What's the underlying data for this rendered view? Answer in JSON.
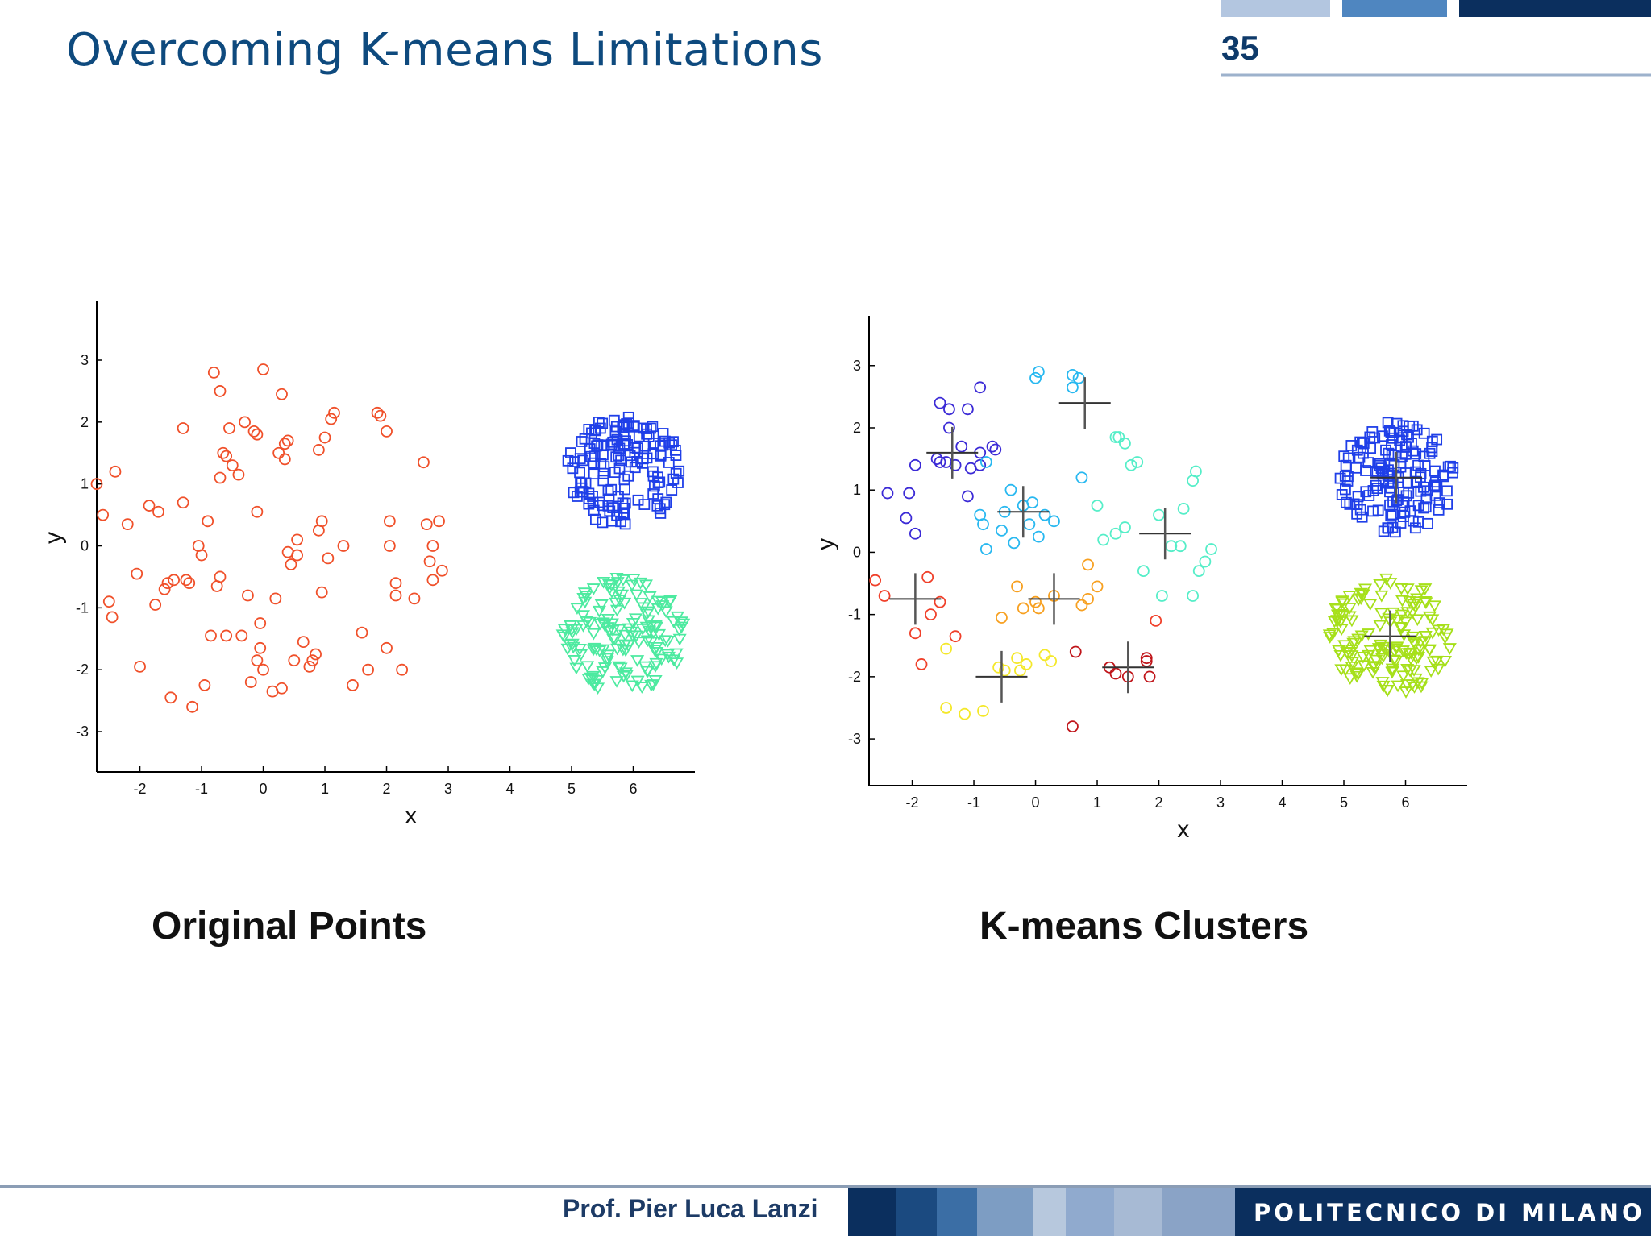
{
  "slide": {
    "title": "Overcoming K-means Limitations",
    "number": "35",
    "captions": [
      "Original Points",
      "K-means Clusters"
    ]
  },
  "footer": {
    "author": "Prof. Pier Luca Lanzi",
    "organization": "POLITECNICO DI MILANO"
  },
  "colors": {
    "title": "#0e4a7e",
    "footer_dark": "#0b2f5e",
    "red_points": "#f0502a",
    "blue_points": "#1f3fe8",
    "green_points": "#4deaa0",
    "lime_points": "#a6e01a",
    "centroid": "#333333"
  },
  "chart_data": [
    {
      "type": "scatter",
      "title": "",
      "caption": "Original Points",
      "xlabel": "x",
      "ylabel": "y",
      "xlim": [
        -2.7,
        7.0
      ],
      "ylim": [
        -3.65,
        3.95
      ],
      "xticks": [
        -2,
        -1,
        0,
        1,
        2,
        3,
        4,
        5,
        6
      ],
      "yticks": [
        -3,
        -2,
        -1,
        0,
        1,
        2,
        3
      ],
      "series": [
        {
          "marker": "circle",
          "color": "#f0502a",
          "points": [
            [
              -2.7,
              1.0
            ],
            [
              -2.6,
              0.5
            ],
            [
              -2.5,
              -0.9
            ],
            [
              -2.45,
              -1.15
            ],
            [
              -2.4,
              1.2
            ],
            [
              -2.2,
              0.35
            ],
            [
              -2.05,
              -0.45
            ],
            [
              -2.0,
              -1.95
            ],
            [
              -1.85,
              0.65
            ],
            [
              -1.75,
              -0.95
            ],
            [
              -1.7,
              0.55
            ],
            [
              -1.6,
              -0.7
            ],
            [
              -1.55,
              -0.6
            ],
            [
              -1.5,
              -2.45
            ],
            [
              -1.45,
              -0.55
            ],
            [
              -1.3,
              0.7
            ],
            [
              -1.3,
              1.9
            ],
            [
              -1.25,
              -0.55
            ],
            [
              -1.2,
              -0.6
            ],
            [
              -1.15,
              -2.6
            ],
            [
              -1.05,
              0.0
            ],
            [
              -1.0,
              -0.15
            ],
            [
              -0.95,
              -2.25
            ],
            [
              -0.9,
              0.4
            ],
            [
              -0.85,
              -1.45
            ],
            [
              -0.8,
              2.8
            ],
            [
              -0.75,
              -0.65
            ],
            [
              -0.7,
              2.5
            ],
            [
              -0.7,
              1.1
            ],
            [
              -0.7,
              -0.5
            ],
            [
              -0.65,
              1.5
            ],
            [
              -0.6,
              1.45
            ],
            [
              -0.6,
              -1.45
            ],
            [
              -0.55,
              1.9
            ],
            [
              -0.5,
              1.3
            ],
            [
              -0.4,
              1.15
            ],
            [
              -0.35,
              -1.45
            ],
            [
              -0.3,
              2.0
            ],
            [
              -0.25,
              -0.8
            ],
            [
              -0.2,
              -2.2
            ],
            [
              -0.15,
              1.85
            ],
            [
              -0.1,
              1.8
            ],
            [
              -0.1,
              0.55
            ],
            [
              -0.05,
              -1.25
            ],
            [
              0.0,
              -2.0
            ],
            [
              0.0,
              2.85
            ],
            [
              -0.05,
              -1.65
            ],
            [
              -0.1,
              -1.85
            ],
            [
              0.15,
              -2.35
            ],
            [
              0.2,
              -0.85
            ],
            [
              0.25,
              1.5
            ],
            [
              0.3,
              -2.3
            ],
            [
              0.3,
              2.45
            ],
            [
              0.35,
              1.4
            ],
            [
              0.35,
              1.65
            ],
            [
              0.4,
              1.7
            ],
            [
              0.4,
              -0.1
            ],
            [
              0.45,
              -0.3
            ],
            [
              0.5,
              -1.85
            ],
            [
              0.55,
              -0.15
            ],
            [
              0.55,
              0.1
            ],
            [
              0.65,
              -1.55
            ],
            [
              0.75,
              -1.95
            ],
            [
              0.8,
              -1.85
            ],
            [
              0.85,
              -1.75
            ],
            [
              0.9,
              0.25
            ],
            [
              0.9,
              1.55
            ],
            [
              0.95,
              -0.75
            ],
            [
              0.95,
              0.4
            ],
            [
              1.0,
              1.75
            ],
            [
              1.05,
              -0.2
            ],
            [
              1.1,
              2.05
            ],
            [
              1.15,
              2.15
            ],
            [
              1.3,
              0.0
            ],
            [
              1.45,
              -2.25
            ],
            [
              1.6,
              -1.4
            ],
            [
              1.7,
              -2.0
            ],
            [
              1.85,
              2.15
            ],
            [
              1.9,
              2.1
            ],
            [
              2.0,
              1.85
            ],
            [
              2.0,
              -1.65
            ],
            [
              2.05,
              0.4
            ],
            [
              2.05,
              0.0
            ],
            [
              2.15,
              -0.6
            ],
            [
              2.15,
              -0.8
            ],
            [
              2.25,
              -2.0
            ],
            [
              2.45,
              -0.85
            ],
            [
              2.6,
              1.35
            ],
            [
              2.65,
              0.35
            ],
            [
              2.7,
              -0.25
            ],
            [
              2.75,
              0.0
            ],
            [
              2.75,
              -0.55
            ],
            [
              2.85,
              0.4
            ],
            [
              2.9,
              -0.4
            ]
          ]
        },
        {
          "marker": "square",
          "color": "#1f3fe8",
          "center": [
            5.85,
            1.2
          ],
          "radius": 0.95,
          "count": 150
        },
        {
          "marker": "triangle-down",
          "color": "#4deaa0",
          "center": [
            5.85,
            -1.45
          ],
          "radius": 1.0,
          "count": 150
        }
      ]
    },
    {
      "type": "scatter",
      "title": "",
      "caption": "K-means Clusters",
      "xlabel": "x",
      "ylabel": "y",
      "xlim": [
        -2.7,
        7.0
      ],
      "ylim": [
        -3.75,
        3.8
      ],
      "xticks": [
        -2,
        -1,
        0,
        1,
        2,
        3,
        4,
        5,
        6
      ],
      "yticks": [
        -3,
        -2,
        -1,
        0,
        1,
        2,
        3
      ],
      "centroids": [
        [
          -1.35,
          1.6
        ],
        [
          -0.2,
          0.65
        ],
        [
          0.8,
          2.4
        ],
        [
          2.1,
          0.3
        ],
        [
          -1.95,
          -0.75
        ],
        [
          0.3,
          -0.75
        ],
        [
          -0.55,
          -2.0
        ],
        [
          1.5,
          -1.85
        ],
        [
          5.85,
          1.2
        ],
        [
          5.75,
          -1.35
        ]
      ],
      "series": [
        {
          "marker": "circle",
          "color": "#3b2ad6",
          "points": [
            [
              -1.55,
              2.4
            ],
            [
              -1.4,
              2.3
            ],
            [
              -1.1,
              2.3
            ],
            [
              -0.9,
              2.65
            ],
            [
              -1.4,
              2.0
            ],
            [
              -1.2,
              1.7
            ],
            [
              -1.3,
              1.4
            ],
            [
              -1.55,
              1.45
            ],
            [
              -1.45,
              1.45
            ],
            [
              -1.6,
              1.5
            ],
            [
              -1.95,
              1.4
            ],
            [
              -2.05,
              0.95
            ],
            [
              -2.4,
              0.95
            ],
            [
              -2.1,
              0.55
            ],
            [
              -1.95,
              0.3
            ],
            [
              -1.1,
              0.9
            ],
            [
              -0.9,
              1.4
            ],
            [
              -0.9,
              1.6
            ],
            [
              -0.7,
              1.7
            ],
            [
              -0.65,
              1.65
            ],
            [
              -1.05,
              1.35
            ]
          ]
        },
        {
          "marker": "circle",
          "color": "#28b8f0",
          "points": [
            [
              -0.9,
              0.6
            ],
            [
              -0.85,
              0.45
            ],
            [
              -0.8,
              0.05
            ],
            [
              -0.55,
              0.35
            ],
            [
              -0.5,
              0.65
            ],
            [
              -0.4,
              1.0
            ],
            [
              -0.35,
              0.15
            ],
            [
              -0.2,
              0.75
            ],
            [
              -0.1,
              0.45
            ],
            [
              -0.05,
              0.8
            ],
            [
              0.05,
              0.25
            ],
            [
              0.15,
              0.6
            ],
            [
              0.3,
              0.5
            ],
            [
              -0.8,
              1.45
            ],
            [
              0.0,
              2.8
            ],
            [
              0.05,
              2.9
            ],
            [
              0.6,
              2.85
            ],
            [
              0.7,
              2.8
            ],
            [
              0.6,
              2.65
            ],
            [
              0.75,
              1.2
            ]
          ]
        },
        {
          "marker": "circle",
          "color": "#55eec8",
          "points": [
            [
              1.3,
              1.85
            ],
            [
              1.35,
              1.85
            ],
            [
              1.45,
              1.75
            ],
            [
              1.65,
              1.45
            ],
            [
              1.55,
              1.4
            ],
            [
              1.0,
              0.75
            ],
            [
              1.1,
              0.2
            ],
            [
              1.3,
              0.3
            ],
            [
              1.45,
              0.4
            ],
            [
              1.75,
              -0.3
            ],
            [
              2.0,
              0.6
            ],
            [
              2.2,
              0.1
            ],
            [
              2.35,
              0.1
            ],
            [
              2.4,
              0.7
            ],
            [
              2.55,
              1.15
            ],
            [
              2.6,
              1.3
            ],
            [
              2.65,
              -0.3
            ],
            [
              2.75,
              -0.15
            ],
            [
              2.85,
              0.05
            ],
            [
              2.55,
              -0.7
            ],
            [
              2.05,
              -0.7
            ]
          ]
        },
        {
          "marker": "circle",
          "color": "#f7a020",
          "points": [
            [
              -0.3,
              -0.55
            ],
            [
              -0.55,
              -1.05
            ],
            [
              -0.2,
              -0.9
            ],
            [
              0.0,
              -0.8
            ],
            [
              0.05,
              -0.9
            ],
            [
              0.75,
              -0.85
            ],
            [
              0.85,
              -0.75
            ],
            [
              1.0,
              -0.55
            ],
            [
              0.85,
              -0.2
            ],
            [
              0.3,
              -0.7
            ]
          ]
        },
        {
          "marker": "circle",
          "color": "#f4e82a",
          "points": [
            [
              -1.45,
              -1.55
            ],
            [
              -1.45,
              -2.5
            ],
            [
              -1.15,
              -2.6
            ],
            [
              -0.85,
              -2.55
            ],
            [
              -0.6,
              -1.85
            ],
            [
              -0.5,
              -1.9
            ],
            [
              -0.3,
              -1.7
            ],
            [
              -0.25,
              -1.9
            ],
            [
              -0.15,
              -1.8
            ],
            [
              0.15,
              -1.65
            ],
            [
              0.25,
              -1.75
            ]
          ]
        },
        {
          "marker": "circle",
          "color": "#f0402a",
          "points": [
            [
              -2.6,
              -0.45
            ],
            [
              -2.45,
              -0.7
            ],
            [
              -1.95,
              -1.3
            ],
            [
              -1.75,
              -0.4
            ],
            [
              -1.7,
              -1.0
            ],
            [
              -1.55,
              -0.8
            ],
            [
              -1.3,
              -1.35
            ],
            [
              -1.85,
              -1.8
            ],
            [
              1.95,
              -1.1
            ]
          ]
        },
        {
          "marker": "circle",
          "color": "#c0151a",
          "points": [
            [
              0.65,
              -1.6
            ],
            [
              1.2,
              -1.85
            ],
            [
              1.3,
              -1.95
            ],
            [
              1.5,
              -2.0
            ],
            [
              1.8,
              -1.7
            ],
            [
              1.8,
              -1.75
            ],
            [
              1.85,
              -2.0
            ],
            [
              0.6,
              -2.8
            ]
          ]
        },
        {
          "marker": "square",
          "color": "#1f3fe8",
          "center": [
            5.85,
            1.2
          ],
          "radius": 0.95,
          "count": 150
        },
        {
          "marker": "triangle-down",
          "color": "#a6e01a",
          "center": [
            5.75,
            -1.35
          ],
          "radius": 1.0,
          "count": 150
        }
      ]
    }
  ]
}
